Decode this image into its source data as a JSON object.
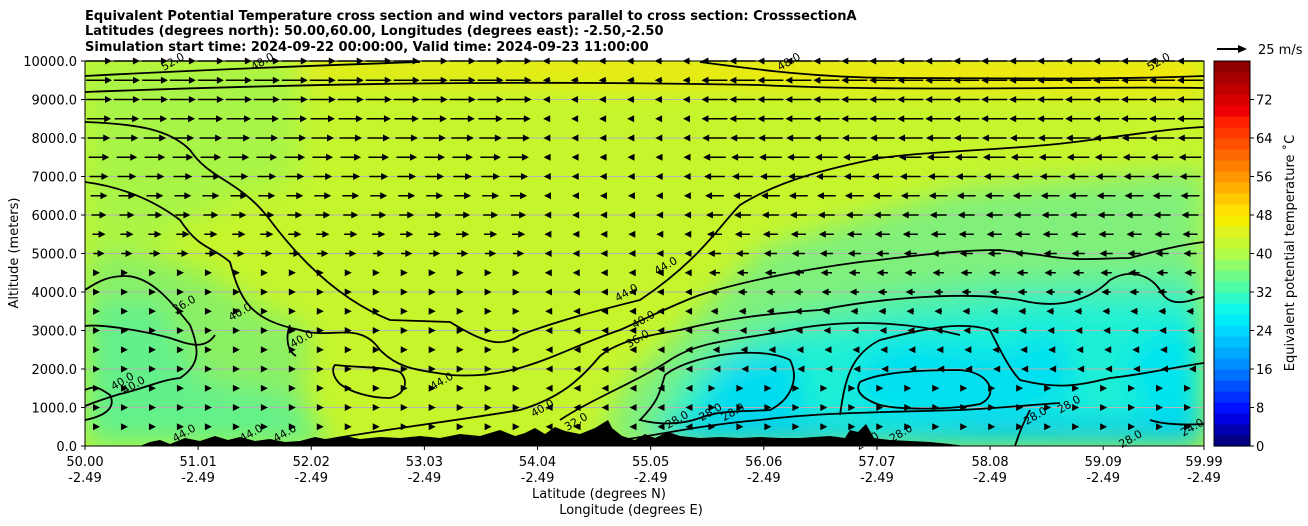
{
  "titles": [
    "Equivalent Potential Temperature cross section and wind vectors parallel to cross section: CrosssectionA",
    "Latitudes (degrees north): 50.00,60.00, Longitudes (degrees east): -2.50,-2.50",
    "Simulation start time: 2024-09-22 00:00:00, Valid time: 2024-09-23 11:00:00"
  ],
  "chart_data": {
    "type": "contour-cross-section",
    "ylabel": "Altitude (meters)",
    "xlabel_lat": "Latitude (degrees N)",
    "xlabel_lon": "Longitude (degrees E)",
    "ylim": [
      0,
      10000
    ],
    "y_ticks": [
      "0.0",
      "1000.0",
      "2000.0",
      "3000.0",
      "4000.0",
      "5000.0",
      "6000.0",
      "7000.0",
      "8000.0",
      "9000.0",
      "10000.0"
    ],
    "x_range": [
      50.0,
      59.99
    ],
    "x_ticks": [
      {
        "lat": "50.00",
        "lon": "-2.49"
      },
      {
        "lat": "51.01",
        "lon": "-2.49"
      },
      {
        "lat": "52.02",
        "lon": "-2.49"
      },
      {
        "lat": "53.03",
        "lon": "-2.49"
      },
      {
        "lat": "54.04",
        "lon": "-2.49"
      },
      {
        "lat": "55.05",
        "lon": "-2.49"
      },
      {
        "lat": "56.06",
        "lon": "-2.49"
      },
      {
        "lat": "57.07",
        "lon": "-2.49"
      },
      {
        "lat": "58.08",
        "lon": "-2.49"
      },
      {
        "lat": "59.09",
        "lon": "-2.49"
      },
      {
        "lat": "59.99",
        "lon": "-2.49"
      }
    ],
    "colorbar": {
      "label": "Equivalent potential temperature ˚C",
      "range": [
        0,
        80
      ],
      "ticks": [
        "0",
        "8",
        "16",
        "24",
        "32",
        "40",
        "48",
        "56",
        "64",
        "72"
      ]
    },
    "wind_key": "25 m/s",
    "contour_labels": [
      {
        "text": "52.0",
        "lat": 50.8,
        "alt": 9900
      },
      {
        "text": "48.0",
        "lat": 51.6,
        "alt": 9900
      },
      {
        "text": "48.0",
        "lat": 56.3,
        "alt": 9900
      },
      {
        "text": "52.0",
        "lat": 59.6,
        "alt": 9900
      },
      {
        "text": "36.0",
        "lat": 50.9,
        "alt": 3600
      },
      {
        "text": "40.0",
        "lat": 51.4,
        "alt": 3400
      },
      {
        "text": "40.0",
        "lat": 51.95,
        "alt": 2700
      },
      {
        "text": "40.0",
        "lat": 50.35,
        "alt": 1600
      },
      {
        "text": "40.0",
        "lat": 50.45,
        "alt": 1500
      },
      {
        "text": "44.0",
        "lat": 53.2,
        "alt": 1600
      },
      {
        "text": "44.0",
        "lat": 54.85,
        "alt": 3900
      },
      {
        "text": "44.0",
        "lat": 55.2,
        "alt": 4600
      },
      {
        "text": "40.0",
        "lat": 55.0,
        "alt": 3200
      },
      {
        "text": "36.0",
        "lat": 54.95,
        "alt": 2700
      },
      {
        "text": "40.0",
        "lat": 54.1,
        "alt": 900
      },
      {
        "text": "32.0",
        "lat": 54.4,
        "alt": 550
      },
      {
        "text": "28.0",
        "lat": 55.3,
        "alt": 600
      },
      {
        "text": "28.0",
        "lat": 55.6,
        "alt": 800
      },
      {
        "text": "28.0",
        "lat": 55.8,
        "alt": 800
      },
      {
        "text": "28.0",
        "lat": 58.5,
        "alt": 700
      },
      {
        "text": "28.0",
        "lat": 58.8,
        "alt": 1000
      },
      {
        "text": "28.0",
        "lat": 59.35,
        "alt": 100
      },
      {
        "text": "28.0",
        "lat": 57.3,
        "alt": 250
      },
      {
        "text": "28.0",
        "lat": 57.0,
        "alt": 50
      },
      {
        "text": "44.0",
        "lat": 50.9,
        "alt": 250
      },
      {
        "text": "44.0",
        "lat": 51.5,
        "alt": 250
      },
      {
        "text": "44.0",
        "lat": 51.8,
        "alt": 250
      },
      {
        "text": "24.0",
        "lat": 59.9,
        "alt": 400
      }
    ],
    "contour_levels": [
      28,
      32,
      36,
      40,
      44,
      48,
      52
    ],
    "field_description_regions": {
      "upper_mid": 48,
      "low_north": 30
    }
  }
}
